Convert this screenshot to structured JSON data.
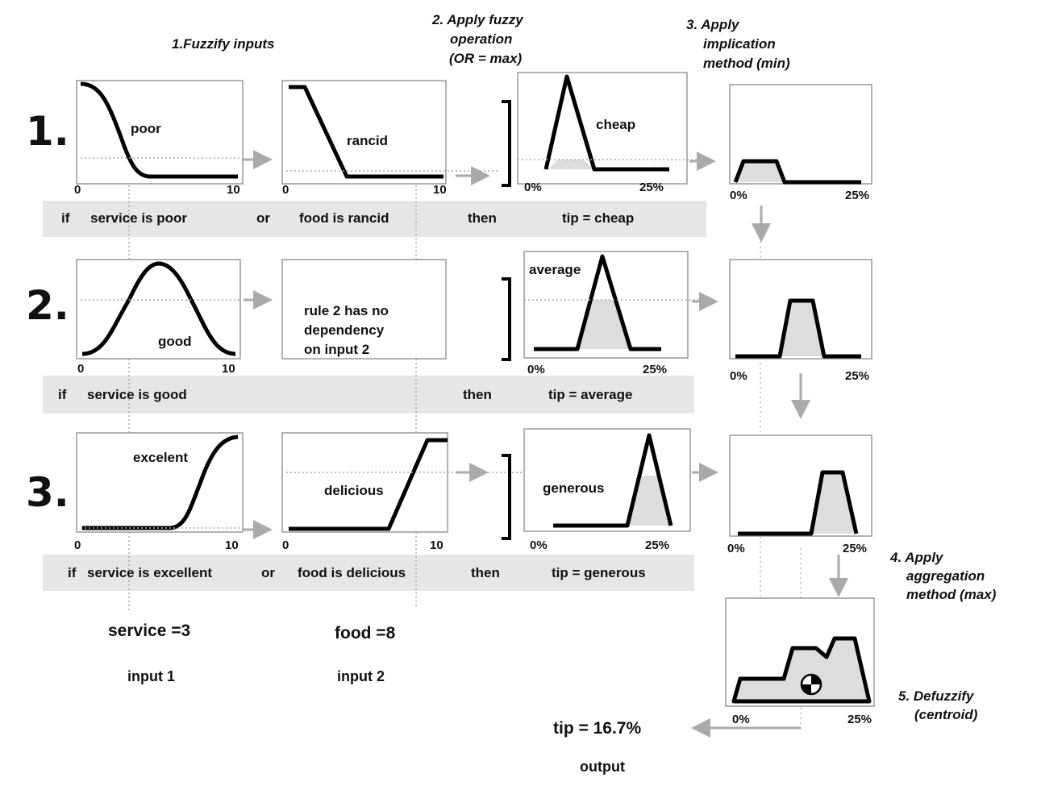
{
  "steps": {
    "s1": "1.Fuzzify inputs",
    "s2_l1": "2. Apply fuzzy",
    "s2_l2": "operation",
    "s2_l3": "(OR = max)",
    "s3_l1": "3. Apply",
    "s3_l2": "implication",
    "s3_l3": "method (min)",
    "s4_l1": "4. Apply",
    "s4_l2": "aggregation",
    "s4_l3": "method (max)",
    "s5_l1": "5. Defuzzify",
    "s5_l2": "(centroid)"
  },
  "rows": [
    {
      "number": "1.",
      "input1_label": "poor",
      "input2_label": "rancid",
      "output_label": "cheap",
      "rule": {
        "if": "if",
        "ant1": "service is poor",
        "conn": "or",
        "ant2": "food is rancid",
        "then": "then",
        "cons": "tip = cheap"
      }
    },
    {
      "number": "2.",
      "input1_label": "good",
      "input2_note_l1": "rule 2 has no",
      "input2_note_l2": "dependency",
      "input2_note_l3": "on input 2",
      "output_label": "average",
      "rule": {
        "if": "if",
        "ant1": "service is good",
        "then": "then",
        "cons": "tip = average"
      }
    },
    {
      "number": "3.",
      "input1_label": "excelent",
      "input2_label": "delicious",
      "output_label": "generous",
      "rule": {
        "if": "if",
        "ant1": "service is excellent",
        "conn": "or",
        "ant2": "food is delicious",
        "then": "then",
        "cons": "tip = generous"
      }
    }
  ],
  "ticks": {
    "in_min": "0",
    "in_max": "10",
    "out_min": "0%",
    "out_max": "25%"
  },
  "inputs": {
    "service_value": "service =3",
    "service_caption": "input 1",
    "food_value": "food =8",
    "food_caption": "input 2"
  },
  "output": {
    "value": "tip = 16.7%",
    "caption": "output"
  },
  "icons": {
    "centroid": "centroid-marker-icon",
    "arrow": "arrow-icon"
  }
}
